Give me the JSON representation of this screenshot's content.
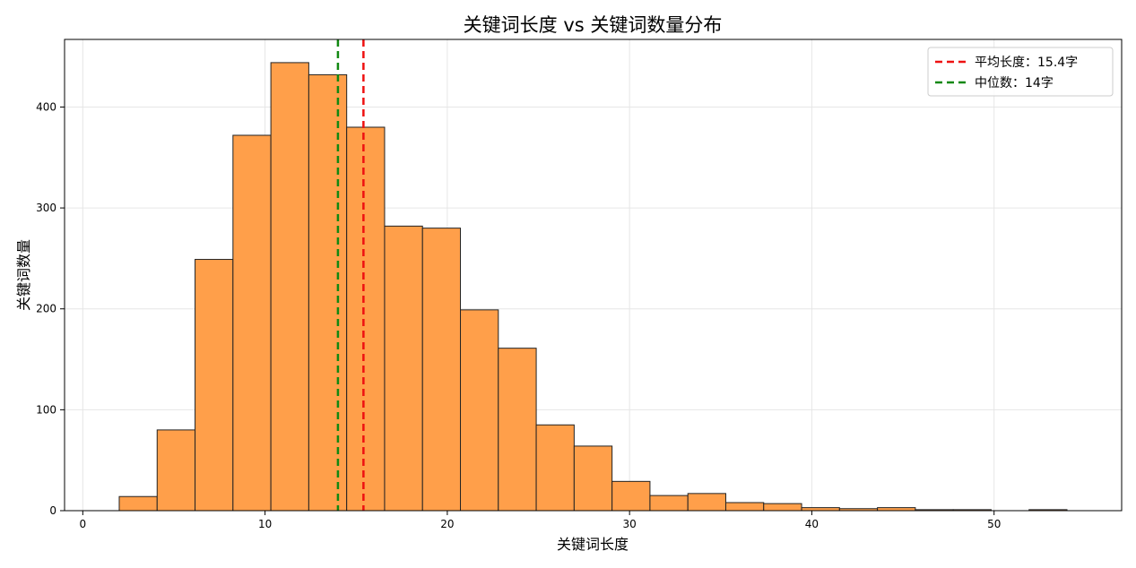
{
  "chart_data": {
    "type": "bar",
    "title": "关键词长度 vs 关键词数量分布",
    "xlabel": "关键词长度",
    "ylabel": "关键词数量",
    "xlim": [
      -1,
      57
    ],
    "ylim": [
      0,
      467
    ],
    "xticks": [
      0,
      10,
      20,
      30,
      40,
      50
    ],
    "yticks": [
      0,
      100,
      200,
      300,
      400
    ],
    "grid": true,
    "bar_color": "#ff9f4a",
    "bar_edge_color": "#222222",
    "bins": [
      {
        "x0": 2.0,
        "x1": 4.08,
        "value": 14
      },
      {
        "x0": 4.08,
        "x1": 6.16,
        "value": 80
      },
      {
        "x0": 6.16,
        "x1": 8.24,
        "value": 249
      },
      {
        "x0": 8.24,
        "x1": 10.32,
        "value": 372
      },
      {
        "x0": 10.32,
        "x1": 12.4,
        "value": 444
      },
      {
        "x0": 12.4,
        "x1": 14.48,
        "value": 432
      },
      {
        "x0": 14.48,
        "x1": 16.56,
        "value": 380
      },
      {
        "x0": 16.56,
        "x1": 18.64,
        "value": 282
      },
      {
        "x0": 18.64,
        "x1": 20.72,
        "value": 280
      },
      {
        "x0": 20.72,
        "x1": 22.8,
        "value": 199
      },
      {
        "x0": 22.8,
        "x1": 24.88,
        "value": 161
      },
      {
        "x0": 24.88,
        "x1": 26.96,
        "value": 85
      },
      {
        "x0": 26.96,
        "x1": 29.04,
        "value": 64
      },
      {
        "x0": 29.04,
        "x1": 31.12,
        "value": 29
      },
      {
        "x0": 31.12,
        "x1": 33.2,
        "value": 15
      },
      {
        "x0": 33.2,
        "x1": 35.28,
        "value": 17
      },
      {
        "x0": 35.28,
        "x1": 37.36,
        "value": 8
      },
      {
        "x0": 37.36,
        "x1": 39.44,
        "value": 7
      },
      {
        "x0": 39.44,
        "x1": 41.52,
        "value": 3
      },
      {
        "x0": 41.52,
        "x1": 43.6,
        "value": 2
      },
      {
        "x0": 43.6,
        "x1": 45.68,
        "value": 3
      },
      {
        "x0": 45.68,
        "x1": 47.76,
        "value": 1
      },
      {
        "x0": 47.76,
        "x1": 49.84,
        "value": 1
      },
      {
        "x0": 49.84,
        "x1": 51.92,
        "value": 0
      },
      {
        "x0": 51.92,
        "x1": 54.0,
        "value": 1
      }
    ],
    "reference_lines": [
      {
        "name": "平均长度：15.4字",
        "x": 15.4,
        "color": "#ee1111",
        "style": "dashed"
      },
      {
        "name": "中位数：14字",
        "x": 14,
        "color": "#118811",
        "style": "dashed"
      }
    ],
    "legend_position": "top-right"
  }
}
